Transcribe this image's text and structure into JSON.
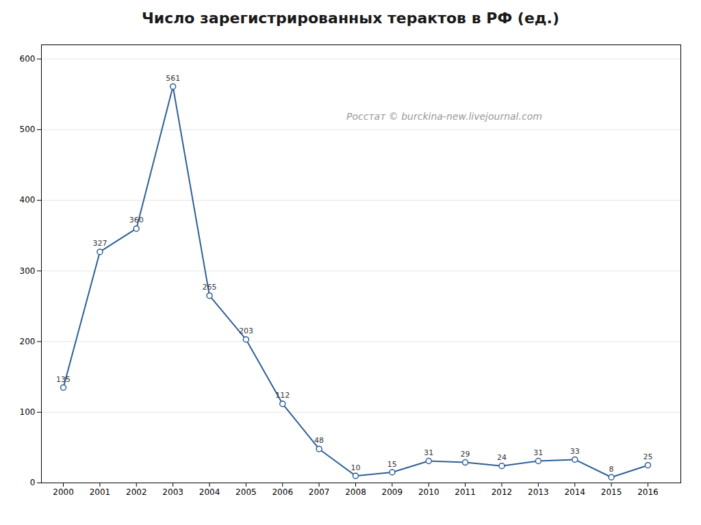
{
  "chart_data": {
    "type": "line",
    "title": "Число зарегистрированных терактов в РФ (ед.)",
    "x": [
      2000,
      2001,
      2002,
      2003,
      2004,
      2005,
      2006,
      2007,
      2008,
      2009,
      2010,
      2011,
      2012,
      2013,
      2014,
      2015,
      2016
    ],
    "values": [
      135,
      327,
      360,
      561,
      265,
      203,
      112,
      48,
      10,
      15,
      31,
      29,
      24,
      31,
      33,
      8,
      25
    ],
    "color": "#2e5f96",
    "marker": "circle",
    "data_labels": true,
    "annotations": [
      "Росстат © burckina-new.livejournal.com"
    ],
    "xlim": [
      1999.4,
      2016.9
    ],
    "xticks": [
      2000,
      2001,
      2002,
      2003,
      2004,
      2005,
      2006,
      2007,
      2008,
      2009,
      2010,
      2011,
      2012,
      2013,
      2014,
      2015,
      2016
    ],
    "ylim": [
      0,
      620
    ],
    "yticks": [
      0,
      100,
      200,
      300,
      400,
      500,
      600
    ],
    "grid": true
  }
}
